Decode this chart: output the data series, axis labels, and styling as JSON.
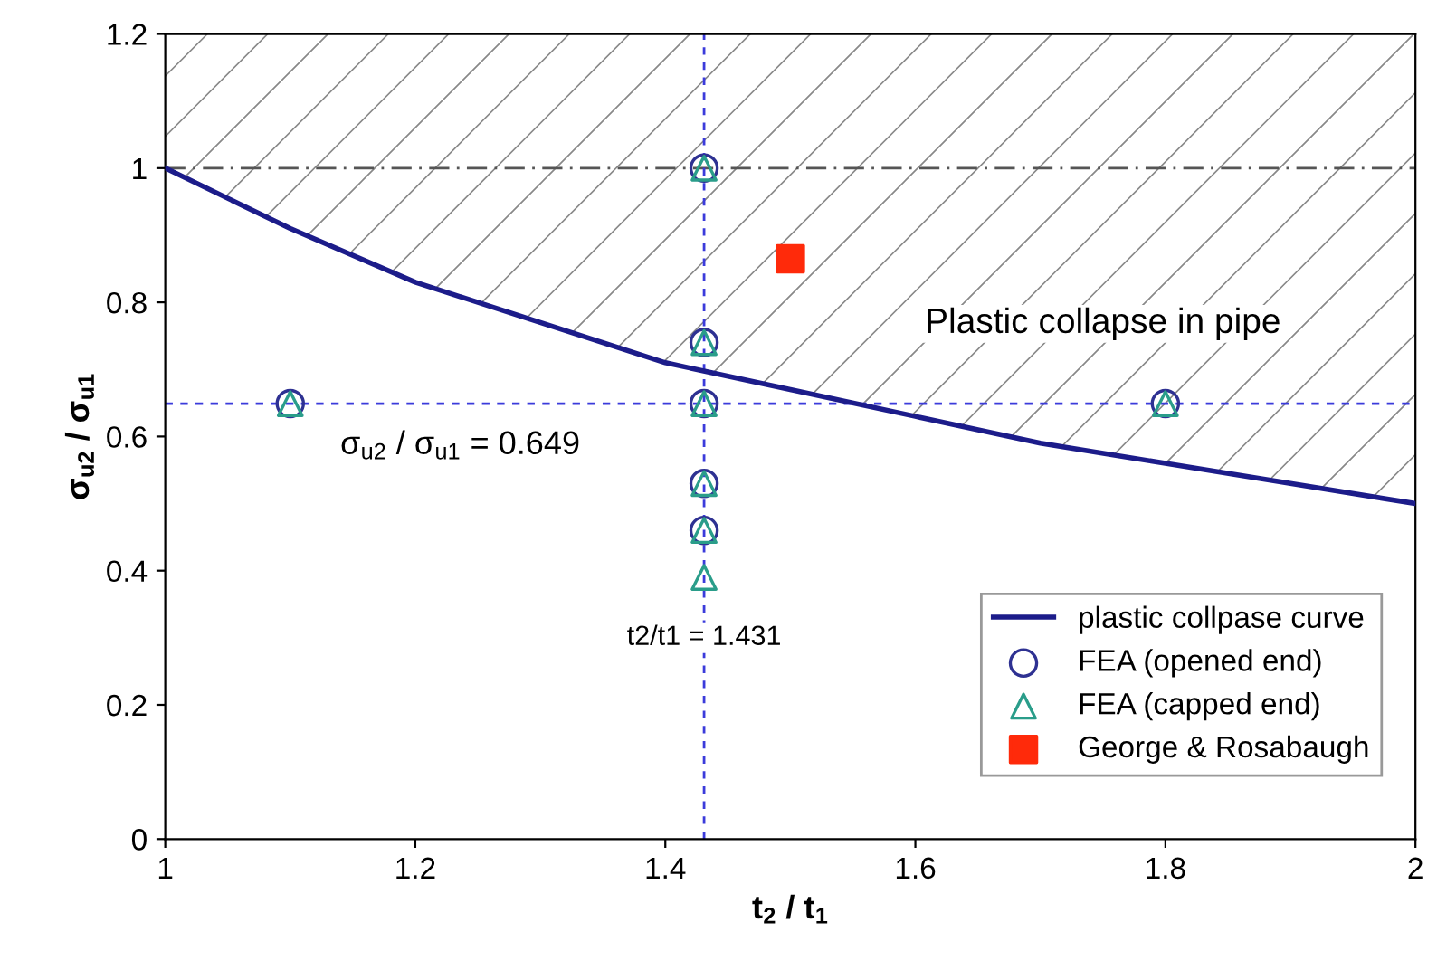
{
  "chart_data": {
    "type": "scatter",
    "xlabel": "t$_{2}$ / t$_{1}$",
    "ylabel": "σ$_{u2}$ / σ$_{u1}$",
    "xlim": [
      1,
      2
    ],
    "xticks": [
      1,
      1.2,
      1.4,
      1.6,
      1.8,
      2
    ],
    "ylim": [
      0,
      1.2
    ],
    "yticks": [
      0,
      0.2,
      0.4,
      0.6,
      0.8,
      1,
      1.2
    ],
    "grid": false,
    "legend": "bottom right",
    "series": [
      {
        "name": "plastic collpase curve",
        "type": "line",
        "color": "#1c1c8a",
        "marker": "none",
        "x": [
          1,
          1.1,
          1.2,
          1.3,
          1.4,
          1.5,
          1.6,
          1.7,
          1.8,
          1.9,
          2
        ],
        "values": [
          1,
          0.91,
          0.83,
          0.77,
          0.71,
          0.67,
          0.63,
          0.59,
          0.56,
          0.53,
          0.5
        ]
      },
      {
        "name": "FEA (opened end)",
        "color": "#2e3192",
        "marker": "circle",
        "x": [
          1.1,
          1.431,
          1.431,
          1.431,
          1.431,
          1.431,
          1.8
        ],
        "values": [
          0.649,
          1,
          0.74,
          0.649,
          0.53,
          0.46,
          0.649
        ]
      },
      {
        "name": "FEA (capped end)",
        "color": "#2a9d8a",
        "marker": "triangle",
        "x": [
          1.1,
          1.431,
          1.431,
          1.431,
          1.431,
          1.431,
          1.431,
          1.8
        ],
        "values": [
          0.649,
          1,
          0.74,
          0.649,
          0.53,
          0.46,
          0.39,
          0.649
        ]
      },
      {
        "name": "George & Rosabaugh",
        "color": "#ff2a0a",
        "marker": "square",
        "x": [
          1.5
        ],
        "values": [
          0.865
        ]
      }
    ],
    "ref_lines": [
      {
        "axis": "y",
        "value": 1,
        "color": "#555555",
        "line_style": "dashdot"
      },
      {
        "axis": "y",
        "value": 0.649,
        "label": "σ$_{u2}$ / σ$_{u1}$ = 0.649",
        "color": "#3b3bdb",
        "line_style": "dashed"
      },
      {
        "axis": "x",
        "value": 1.431,
        "label": "t2/t1 = 1.431",
        "color": "#3b3bdb",
        "line_style": "dashed"
      }
    ],
    "annotations": [
      "Plastic collapse in pipe"
    ]
  }
}
